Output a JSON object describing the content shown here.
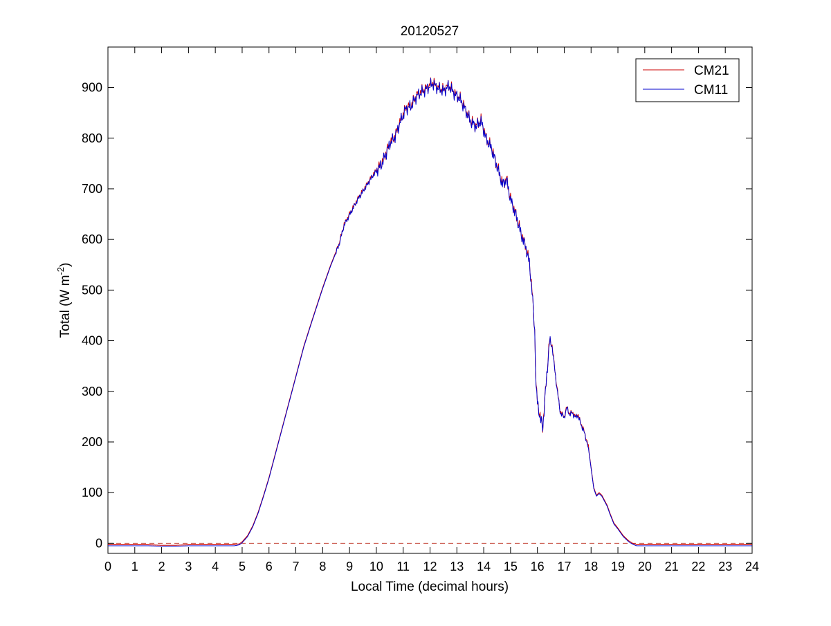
{
  "chart_data": {
    "type": "line",
    "title": "20120527",
    "xlabel": "Local Time (decimal hours)",
    "ylabel": {
      "prefix": "Total (W m",
      "superscript": "-2",
      "suffix": ")"
    },
    "xlim": [
      0,
      24
    ],
    "ylim": [
      -20,
      980
    ],
    "xticks": [
      0,
      1,
      2,
      3,
      4,
      5,
      6,
      7,
      8,
      9,
      10,
      11,
      12,
      13,
      14,
      15,
      16,
      17,
      18,
      19,
      20,
      21,
      22,
      23,
      24
    ],
    "yticks": [
      0,
      100,
      200,
      300,
      400,
      500,
      600,
      700,
      800,
      900
    ],
    "grid": false,
    "legend_position": "top-right",
    "reference_line": {
      "y": 0,
      "style": "dashed",
      "color": "#c0392b"
    },
    "series": [
      {
        "name": "CM21",
        "color": "#cc0000",
        "offset": 2,
        "x": [
          0,
          0.5,
          1,
          1.5,
          2,
          2.5,
          3,
          3.5,
          4,
          4.4,
          4.7,
          4.9,
          5.0,
          5.2,
          5.4,
          5.6,
          5.8,
          6.0,
          6.3,
          6.6,
          7.0,
          7.3,
          7.6,
          8.0,
          8.3,
          8.6,
          8.8,
          9.0,
          9.3,
          9.6,
          9.9,
          10.2,
          10.5,
          10.7,
          10.9,
          11.1,
          11.3,
          11.5,
          11.7,
          11.9,
          12.0,
          12.1,
          12.3,
          12.5,
          12.7,
          12.9,
          13.1,
          13.3,
          13.5,
          13.7,
          13.9,
          14.1,
          14.3,
          14.5,
          14.7,
          14.85,
          15.0,
          15.2,
          15.4,
          15.55,
          15.7,
          15.8,
          15.9,
          15.95,
          16.0,
          16.1,
          16.2,
          16.3,
          16.45,
          16.55,
          16.7,
          16.85,
          17.0,
          17.1,
          17.2,
          17.3,
          17.4,
          17.5,
          17.6,
          17.75,
          17.9,
          18.0,
          18.1,
          18.2,
          18.3,
          18.4,
          18.5,
          18.6,
          18.7,
          18.85,
          19.0,
          19.2,
          19.4,
          19.55,
          19.7,
          19.85,
          20.0,
          21.0,
          22.0,
          23.0,
          24.0
        ],
        "y": [
          -3,
          -3,
          -3,
          -3,
          -4,
          -4,
          -3,
          -3,
          -3,
          -3,
          -3,
          -1,
          3,
          15,
          35,
          62,
          95,
          130,
          190,
          250,
          330,
          390,
          440,
          505,
          550,
          590,
          630,
          650,
          680,
          705,
          730,
          750,
          790,
          805,
          835,
          860,
          865,
          885,
          893,
          900,
          905,
          910,
          900,
          895,
          905,
          890,
          880,
          860,
          835,
          825,
          835,
          800,
          780,
          745,
          710,
          720,
          680,
          650,
          610,
          590,
          555,
          500,
          420,
          310,
          280,
          250,
          230,
          300,
          400,
          390,
          320,
          260,
          250,
          270,
          255,
          260,
          250,
          255,
          240,
          220,
          190,
          150,
          110,
          95,
          100,
          95,
          85,
          75,
          60,
          40,
          30,
          15,
          5,
          0,
          -3,
          -3,
          -3,
          -3,
          -3,
          -3,
          -3
        ]
      },
      {
        "name": "CM11",
        "color": "#0000cc",
        "offset": 0,
        "x": [
          0,
          0.5,
          1,
          1.5,
          2,
          2.5,
          3,
          3.5,
          4,
          4.4,
          4.7,
          4.9,
          5.0,
          5.2,
          5.4,
          5.6,
          5.8,
          6.0,
          6.3,
          6.6,
          7.0,
          7.3,
          7.6,
          8.0,
          8.3,
          8.6,
          8.8,
          9.0,
          9.3,
          9.6,
          9.9,
          10.2,
          10.5,
          10.7,
          10.9,
          11.1,
          11.3,
          11.5,
          11.7,
          11.9,
          12.0,
          12.1,
          12.3,
          12.5,
          12.7,
          12.9,
          13.1,
          13.3,
          13.5,
          13.7,
          13.9,
          14.1,
          14.3,
          14.5,
          14.7,
          14.85,
          15.0,
          15.2,
          15.4,
          15.55,
          15.7,
          15.8,
          15.9,
          15.95,
          16.0,
          16.1,
          16.2,
          16.3,
          16.45,
          16.55,
          16.7,
          16.85,
          17.0,
          17.1,
          17.2,
          17.3,
          17.4,
          17.5,
          17.6,
          17.75,
          17.9,
          18.0,
          18.1,
          18.2,
          18.3,
          18.4,
          18.5,
          18.6,
          18.7,
          18.85,
          19.0,
          19.2,
          19.4,
          19.55,
          19.7,
          19.85,
          20.0,
          21.0,
          22.0,
          23.0,
          24.0
        ],
        "y": [
          -5,
          -5,
          -5,
          -5,
          -6,
          -6,
          -5,
          -5,
          -5,
          -5,
          -5,
          -3,
          1,
          13,
          33,
          60,
          93,
          128,
          188,
          248,
          328,
          388,
          438,
          503,
          548,
          588,
          628,
          648,
          678,
          703,
          728,
          748,
          788,
          803,
          833,
          858,
          863,
          883,
          891,
          898,
          903,
          908,
          898,
          893,
          903,
          888,
          878,
          858,
          833,
          823,
          833,
          798,
          778,
          743,
          708,
          718,
          678,
          648,
          608,
          588,
          553,
          498,
          418,
          308,
          278,
          248,
          228,
          298,
          398,
          388,
          318,
          258,
          248,
          268,
          253,
          258,
          248,
          253,
          238,
          218,
          188,
          148,
          108,
          93,
          98,
          93,
          83,
          73,
          58,
          38,
          28,
          13,
          3,
          -2,
          -5,
          -5,
          -5,
          -5,
          -5,
          -5,
          -5
        ]
      }
    ]
  }
}
